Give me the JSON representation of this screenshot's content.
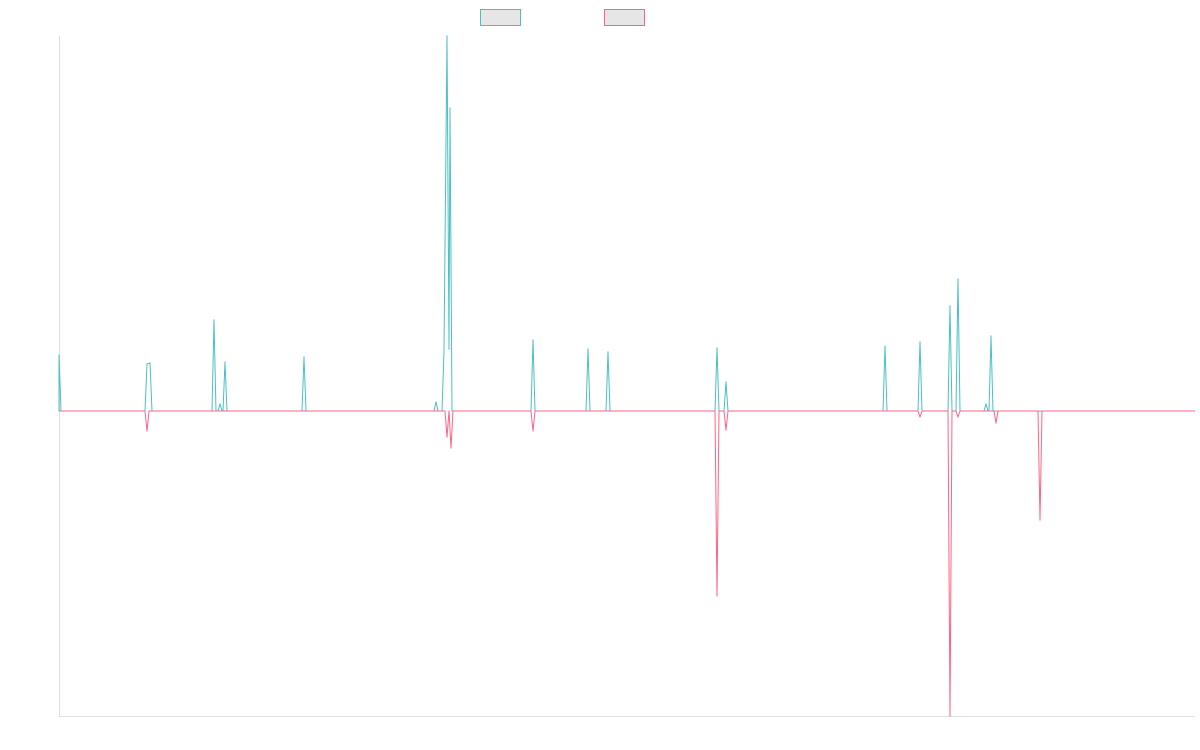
{
  "chart_data": {
    "type": "line",
    "title": "",
    "xlabel": "",
    "ylabel": "",
    "xlim": [
      0,
      1136
    ],
    "ylim": [
      -305,
      375
    ],
    "grid": false,
    "legend": "top-center",
    "series": [
      {
        "name": "",
        "color": "#4bc0c0",
        "spikes": [
          [
            0,
            56
          ],
          [
            88,
            47
          ],
          [
            91,
            48
          ],
          [
            155,
            91
          ],
          [
            161,
            7
          ],
          [
            166,
            49
          ],
          [
            245,
            54
          ],
          [
            377,
            9
          ],
          [
            385,
            60
          ],
          [
            388,
            375
          ],
          [
            390,
            62
          ],
          [
            391,
            303
          ],
          [
            474,
            71
          ],
          [
            529,
            62
          ],
          [
            549,
            59
          ],
          [
            658,
            63
          ],
          [
            667,
            29
          ],
          [
            826,
            65
          ],
          [
            861,
            69
          ],
          [
            891,
            105
          ],
          [
            899,
            132
          ],
          [
            927,
            7
          ],
          [
            932,
            75
          ]
        ]
      },
      {
        "name": "",
        "color": "#ff6384",
        "spikes": [
          [
            88,
            -20
          ],
          [
            388,
            -26
          ],
          [
            392,
            -37
          ],
          [
            474,
            -20
          ],
          [
            658,
            -185
          ],
          [
            667,
            -19
          ],
          [
            861,
            -6
          ],
          [
            891,
            -305
          ],
          [
            899,
            -6
          ],
          [
            937,
            -12
          ],
          [
            981,
            -109
          ]
        ]
      }
    ]
  }
}
